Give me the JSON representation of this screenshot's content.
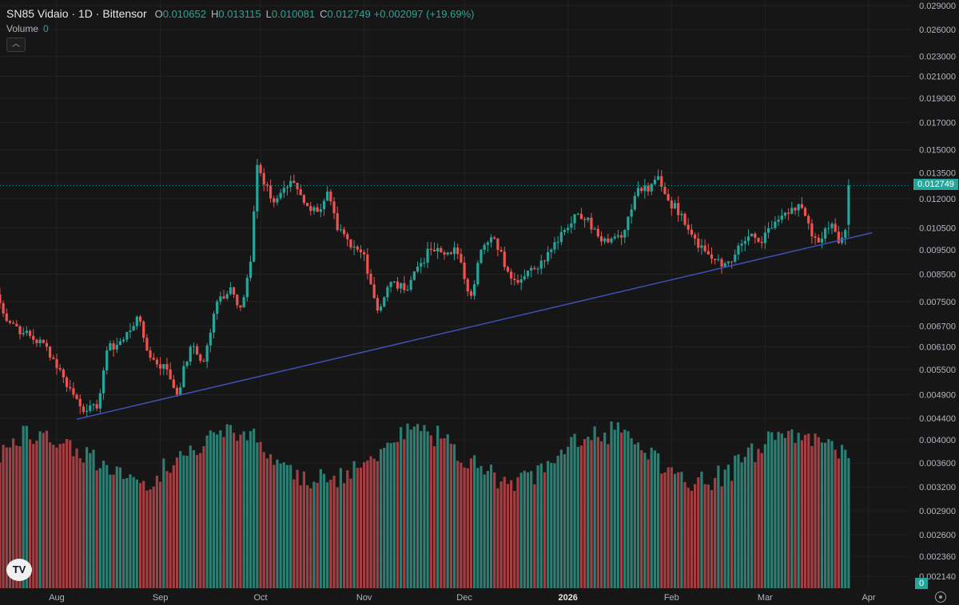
{
  "legend": {
    "symbol": "SN85 Vidaio · 1D · Bittensor",
    "open_label": "O",
    "open": "0.010652",
    "high_label": "H",
    "high": "0.013115",
    "low_label": "L",
    "low": "0.010081",
    "close_label": "C",
    "close": "0.012749",
    "change": "+0.002097 (+19.69%)"
  },
  "volume_legend": {
    "label": "Volume",
    "value": "0"
  },
  "collapse_icon": "chevron-up-icon",
  "logo_text": "TV",
  "price_tag": "0.012749",
  "volume_tag": "0",
  "colors": {
    "up": "#26a69a",
    "down": "#ef5350",
    "trendline": "#3f51b5",
    "background": "#161616"
  },
  "chart_data": {
    "type": "candlestick",
    "scale": "log",
    "price_ticks": [
      "0.029000",
      "0.026000",
      "0.023000",
      "0.021000",
      "0.019000",
      "0.017000",
      "0.015000",
      "0.013500",
      "0.012000",
      "0.010500",
      "0.009500",
      "0.008500",
      "0.007500",
      "0.006700",
      "0.006100",
      "0.005500",
      "0.004900",
      "0.004400"
    ],
    "volume_ticks": [
      "0.004000",
      "0.003600",
      "0.003200",
      "0.002900",
      "0.002600",
      "0.002360",
      "0.002140"
    ],
    "x_ticks": [
      "Aug",
      "Sep",
      "Oct",
      "Nov",
      "Dec",
      "2026",
      "Feb",
      "Mar",
      "Apr"
    ],
    "ylim": [
      0.0037,
      0.0292
    ],
    "anchors": [
      {
        "date": "2025-07-13",
        "close": 0.0081
      },
      {
        "date": "2025-07-16",
        "close": 0.0071
      },
      {
        "date": "2025-07-22",
        "close": 0.0065
      },
      {
        "date": "2025-07-29",
        "close": 0.0061
      },
      {
        "date": "2025-08-03",
        "close": 0.0053
      },
      {
        "date": "2025-08-06",
        "close": 0.0049
      },
      {
        "date": "2025-08-10",
        "close": 0.00455
      },
      {
        "date": "2025-08-13",
        "close": 0.0046
      },
      {
        "date": "2025-08-16",
        "close": 0.006
      },
      {
        "date": "2025-08-21",
        "close": 0.0063
      },
      {
        "date": "2025-08-25",
        "close": 0.007
      },
      {
        "date": "2025-08-29",
        "close": 0.0058
      },
      {
        "date": "2025-09-03",
        "close": 0.0055
      },
      {
        "date": "2025-09-06",
        "close": 0.0049
      },
      {
        "date": "2025-09-10",
        "close": 0.0061
      },
      {
        "date": "2025-09-14",
        "close": 0.0057
      },
      {
        "date": "2025-09-18",
        "close": 0.0075
      },
      {
        "date": "2025-09-22",
        "close": 0.008
      },
      {
        "date": "2025-09-25",
        "close": 0.0073
      },
      {
        "date": "2025-09-28",
        "close": 0.009
      },
      {
        "date": "2025-09-30",
        "close": 0.014
      },
      {
        "date": "2025-10-02",
        "close": 0.0128
      },
      {
        "date": "2025-10-05",
        "close": 0.0118
      },
      {
        "date": "2025-10-08",
        "close": 0.0126
      },
      {
        "date": "2025-10-11",
        "close": 0.0129
      },
      {
        "date": "2025-10-15",
        "close": 0.0116
      },
      {
        "date": "2025-10-18",
        "close": 0.0113
      },
      {
        "date": "2025-10-21",
        "close": 0.0124
      },
      {
        "date": "2025-10-24",
        "close": 0.0104
      },
      {
        "date": "2025-10-28",
        "close": 0.0096
      },
      {
        "date": "2025-11-01",
        "close": 0.0093
      },
      {
        "date": "2025-11-05",
        "close": 0.0072
      },
      {
        "date": "2025-11-09",
        "close": 0.0082
      },
      {
        "date": "2025-11-13",
        "close": 0.0079
      },
      {
        "date": "2025-11-17",
        "close": 0.0088
      },
      {
        "date": "2025-11-21",
        "close": 0.0095
      },
      {
        "date": "2025-11-25",
        "close": 0.0093
      },
      {
        "date": "2025-11-28",
        "close": 0.0096
      },
      {
        "date": "2025-12-03",
        "close": 0.0077
      },
      {
        "date": "2025-12-06",
        "close": 0.0095
      },
      {
        "date": "2025-12-10",
        "close": 0.01
      },
      {
        "date": "2025-12-14",
        "close": 0.0086
      },
      {
        "date": "2025-12-18",
        "close": 0.0083
      },
      {
        "date": "2025-12-22",
        "close": 0.0087
      },
      {
        "date": "2025-12-26",
        "close": 0.0094
      },
      {
        "date": "2025-12-30",
        "close": 0.0103
      },
      {
        "date": "2026-01-04",
        "close": 0.0112
      },
      {
        "date": "2026-01-07",
        "close": 0.011
      },
      {
        "date": "2026-01-10",
        "close": 0.0101
      },
      {
        "date": "2026-01-14",
        "close": 0.01
      },
      {
        "date": "2026-01-18",
        "close": 0.0104
      },
      {
        "date": "2026-01-22",
        "close": 0.0126
      },
      {
        "date": "2026-01-25",
        "close": 0.0124
      },
      {
        "date": "2026-01-28",
        "close": 0.0133
      },
      {
        "date": "2026-01-31",
        "close": 0.0119
      },
      {
        "date": "2026-02-04",
        "close": 0.0112
      },
      {
        "date": "2026-02-08",
        "close": 0.01
      },
      {
        "date": "2026-02-12",
        "close": 0.0093
      },
      {
        "date": "2026-02-16",
        "close": 0.0088
      },
      {
        "date": "2026-02-20",
        "close": 0.0093
      },
      {
        "date": "2026-02-24",
        "close": 0.0101
      },
      {
        "date": "2026-02-28",
        "close": 0.0098
      },
      {
        "date": "2026-03-04",
        "close": 0.0108
      },
      {
        "date": "2026-03-08",
        "close": 0.0112
      },
      {
        "date": "2026-03-12",
        "close": 0.0115
      },
      {
        "date": "2026-03-15",
        "close": 0.0101
      },
      {
        "date": "2026-03-18",
        "close": 0.01
      },
      {
        "date": "2026-03-21",
        "close": 0.0107
      },
      {
        "date": "2026-03-23",
        "close": 0.0098
      },
      {
        "date": "2026-03-25",
        "close": 0.0104
      },
      {
        "date": "2026-03-26",
        "close": 0.012749
      }
    ],
    "trendline": [
      {
        "date": "2025-08-07",
        "price": 0.00438
      },
      {
        "date": "2026-04-02",
        "price": 0.01027
      }
    ]
  }
}
